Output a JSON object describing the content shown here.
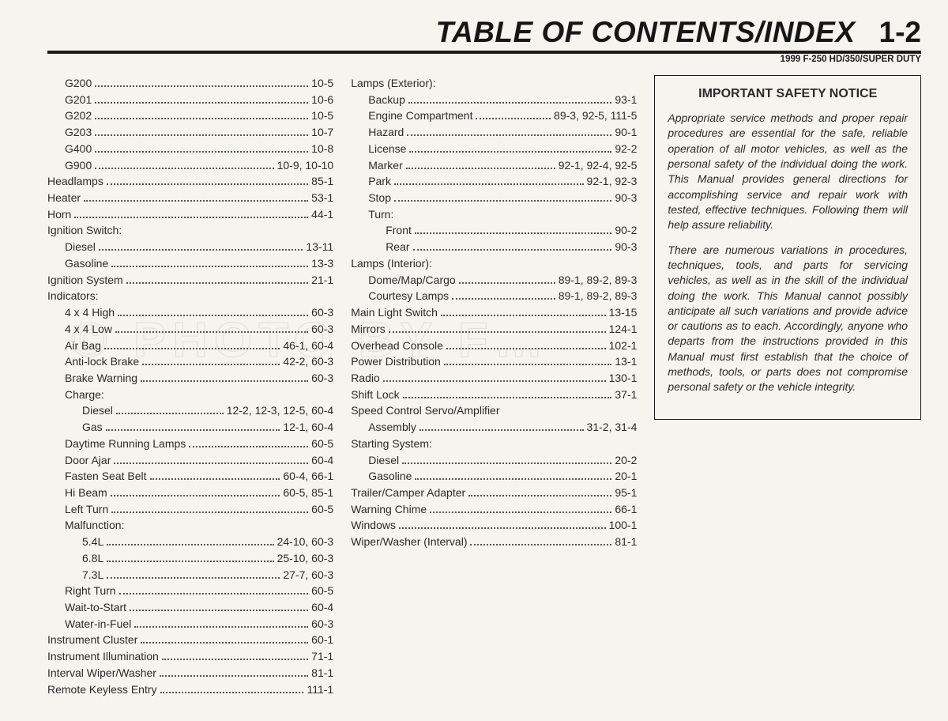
{
  "header": {
    "title": "TABLE OF CONTENTS/INDEX",
    "page_no": "1-2",
    "subtitle": "1999 F-250 HD/350/SUPER DUTY"
  },
  "watermark": "© PHOTO BY F…",
  "col1": [
    {
      "label": "G200",
      "page": "10-5",
      "indent": 1
    },
    {
      "label": "G201",
      "page": "10-6",
      "indent": 1
    },
    {
      "label": "G202",
      "page": "10-5",
      "indent": 1
    },
    {
      "label": "G203",
      "page": "10-7",
      "indent": 1
    },
    {
      "label": "G400",
      "page": "10-8",
      "indent": 1
    },
    {
      "label": "G900",
      "page": "10-9, 10-10",
      "indent": 1
    },
    {
      "label": "Headlamps",
      "page": "85-1",
      "indent": 0
    },
    {
      "label": "Heater",
      "page": "53-1",
      "indent": 0
    },
    {
      "label": "Horn",
      "page": "44-1",
      "indent": 0
    },
    {
      "label": "Ignition Switch:",
      "page": "",
      "indent": 0,
      "heading": true
    },
    {
      "label": "Diesel",
      "page": "13-11",
      "indent": 1
    },
    {
      "label": "Gasoline",
      "page": "13-3",
      "indent": 1
    },
    {
      "label": "Ignition System",
      "page": "21-1",
      "indent": 0
    },
    {
      "label": "Indicators:",
      "page": "",
      "indent": 0,
      "heading": true
    },
    {
      "label": "4 x 4 High",
      "page": "60-3",
      "indent": 1
    },
    {
      "label": "4 x 4 Low",
      "page": "60-3",
      "indent": 1
    },
    {
      "label": "Air Bag",
      "page": "46-1, 60-4",
      "indent": 1
    },
    {
      "label": "Anti-lock Brake",
      "page": "42-2, 60-3",
      "indent": 1
    },
    {
      "label": "Brake Warning",
      "page": "60-3",
      "indent": 1
    },
    {
      "label": "Charge:",
      "page": "",
      "indent": 1,
      "heading": true
    },
    {
      "label": "Diesel",
      "page": "12-2, 12-3, 12-5, 60-4",
      "indent": 2
    },
    {
      "label": "Gas",
      "page": "12-1, 60-4",
      "indent": 2
    },
    {
      "label": "Daytime Running Lamps",
      "page": "60-5",
      "indent": 1
    },
    {
      "label": "Door Ajar",
      "page": "60-4",
      "indent": 1
    },
    {
      "label": "Fasten Seat Belt",
      "page": "60-4, 66-1",
      "indent": 1
    },
    {
      "label": "Hi Beam",
      "page": "60-5, 85-1",
      "indent": 1
    },
    {
      "label": "Left Turn",
      "page": "60-5",
      "indent": 1
    },
    {
      "label": "Malfunction:",
      "page": "",
      "indent": 1,
      "heading": true
    },
    {
      "label": "5.4L",
      "page": "24-10, 60-3",
      "indent": 2
    },
    {
      "label": "6.8L",
      "page": "25-10, 60-3",
      "indent": 2
    },
    {
      "label": "7.3L",
      "page": "27-7, 60-3",
      "indent": 2
    },
    {
      "label": "Right Turn",
      "page": "60-5",
      "indent": 1
    },
    {
      "label": "Wait-to-Start",
      "page": "60-4",
      "indent": 1
    },
    {
      "label": "Water-in-Fuel",
      "page": "60-3",
      "indent": 1
    },
    {
      "label": "Instrument Cluster",
      "page": "60-1",
      "indent": 0
    },
    {
      "label": "Instrument Illumination",
      "page": "71-1",
      "indent": 0
    },
    {
      "label": "Interval Wiper/Washer",
      "page": "81-1",
      "indent": 0
    },
    {
      "label": "Remote Keyless Entry",
      "page": "111-1",
      "indent": 0
    }
  ],
  "col2": [
    {
      "label": "Lamps (Exterior):",
      "page": "",
      "indent": 0,
      "heading": true
    },
    {
      "label": "Backup",
      "page": "93-1",
      "indent": 1
    },
    {
      "label": "Engine Compartment",
      "page": "89-3, 92-5, 111-5",
      "indent": 1
    },
    {
      "label": "Hazard",
      "page": "90-1",
      "indent": 1
    },
    {
      "label": "License",
      "page": "92-2",
      "indent": 1
    },
    {
      "label": "Marker",
      "page": "92-1, 92-4, 92-5",
      "indent": 1
    },
    {
      "label": "Park",
      "page": "92-1, 92-3",
      "indent": 1
    },
    {
      "label": "Stop",
      "page": "90-3",
      "indent": 1
    },
    {
      "label": "Turn:",
      "page": "",
      "indent": 1,
      "heading": true
    },
    {
      "label": "Front",
      "page": "90-2",
      "indent": 2
    },
    {
      "label": "Rear",
      "page": "90-3",
      "indent": 2
    },
    {
      "label": "Lamps (Interior):",
      "page": "",
      "indent": 0,
      "heading": true
    },
    {
      "label": "Dome/Map/Cargo",
      "page": "89-1, 89-2, 89-3",
      "indent": 1
    },
    {
      "label": "Courtesy Lamps",
      "page": "89-1, 89-2, 89-3",
      "indent": 1
    },
    {
      "label": "Main Light Switch",
      "page": "13-15",
      "indent": 0
    },
    {
      "label": "Mirrors",
      "page": "124-1",
      "indent": 0
    },
    {
      "label": "Overhead Console",
      "page": "102-1",
      "indent": 0
    },
    {
      "label": "Power Distribution",
      "page": "13-1",
      "indent": 0
    },
    {
      "label": "Radio",
      "page": "130-1",
      "indent": 0
    },
    {
      "label": "Shift Lock",
      "page": "37-1",
      "indent": 0
    },
    {
      "label": "Speed Control Servo/Amplifier",
      "page": "",
      "indent": 0,
      "heading": true
    },
    {
      "label": "Assembly",
      "page": "31-2, 31-4",
      "indent": 1
    },
    {
      "label": "Starting System:",
      "page": "",
      "indent": 0,
      "heading": true
    },
    {
      "label": "Diesel",
      "page": "20-2",
      "indent": 1
    },
    {
      "label": "Gasoline",
      "page": "20-1",
      "indent": 1
    },
    {
      "label": "Trailer/Camper Adapter",
      "page": "95-1",
      "indent": 0
    },
    {
      "label": "Warning Chime",
      "page": "66-1",
      "indent": 0
    },
    {
      "label": "Windows",
      "page": "100-1",
      "indent": 0
    },
    {
      "label": "Wiper/Washer (Interval)",
      "page": "81-1",
      "indent": 0
    }
  ],
  "notice": {
    "title": "IMPORTANT SAFETY NOTICE",
    "p1": "Appropriate service methods and proper repair procedures are essential for the safe, reliable operation of all motor vehicles, as well as the personal safety of the individual doing the work. This Manual provides general directions for accomplishing service and repair work with tested, effective techniques. Following them will help assure reliability.",
    "p2": "There are numerous variations in procedures, techniques, tools, and parts for servicing vehicles, as well as in the skill of the individual doing the work. This Manual cannot possibly anticipate all such variations and provide advice or cautions as to each. Accordingly, anyone who departs from the instructions provided in this Manual must first establish that the choice of methods, tools, or parts does not compromise personal safety or the vehicle integrity."
  }
}
